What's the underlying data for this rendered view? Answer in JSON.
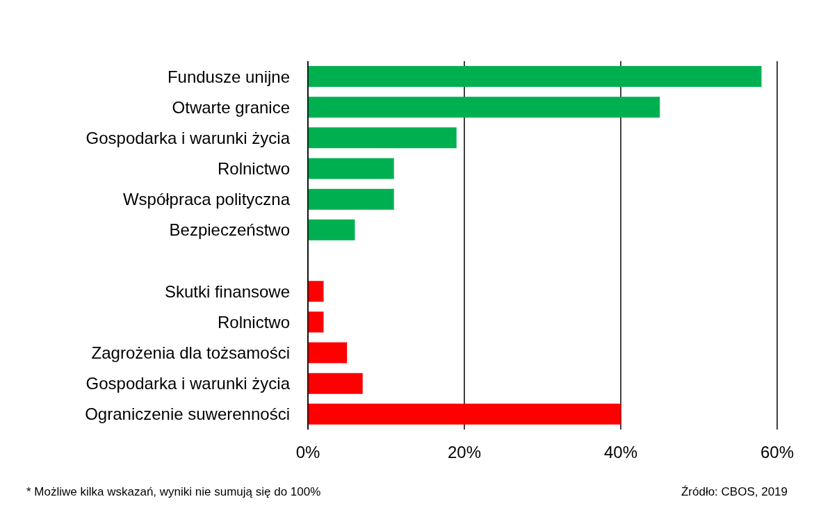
{
  "chart_data": {
    "type": "bar",
    "orientation": "horizontal",
    "categories": [
      "Fundusze unijne",
      "Otwarte granice",
      "Gospodarka i warunki życia",
      "Rolnictwo",
      "Współpraca polityczna",
      "Bezpieczeństwo",
      null,
      "Skutki finansowe",
      "Rolnictwo",
      "Zagrożenia dla tożsamości",
      "Gospodarka i warunki życia",
      "Ograniczenie suwerenności"
    ],
    "values": [
      58,
      45,
      19,
      11,
      11,
      6,
      null,
      2,
      2,
      5,
      7,
      40
    ],
    "colors": [
      "#00b050",
      "#00b050",
      "#00b050",
      "#00b050",
      "#00b050",
      "#00b050",
      "#00b050",
      "#ff0000",
      "#ff0000",
      "#ff0000",
      "#ff0000",
      "#ff0000"
    ],
    "xlim": [
      0,
      60
    ],
    "xticks": [
      {
        "value": 0,
        "label": "0%"
      },
      {
        "value": 20,
        "label": "20%"
      },
      {
        "value": 40,
        "label": "40%"
      },
      {
        "value": 60,
        "label": "60%"
      }
    ],
    "grid": "x",
    "annotations": [
      "* Możliwe kilka wskazań, wyniki nie sumują się do 100%",
      "Źródło: CBOS, 2019"
    ]
  }
}
